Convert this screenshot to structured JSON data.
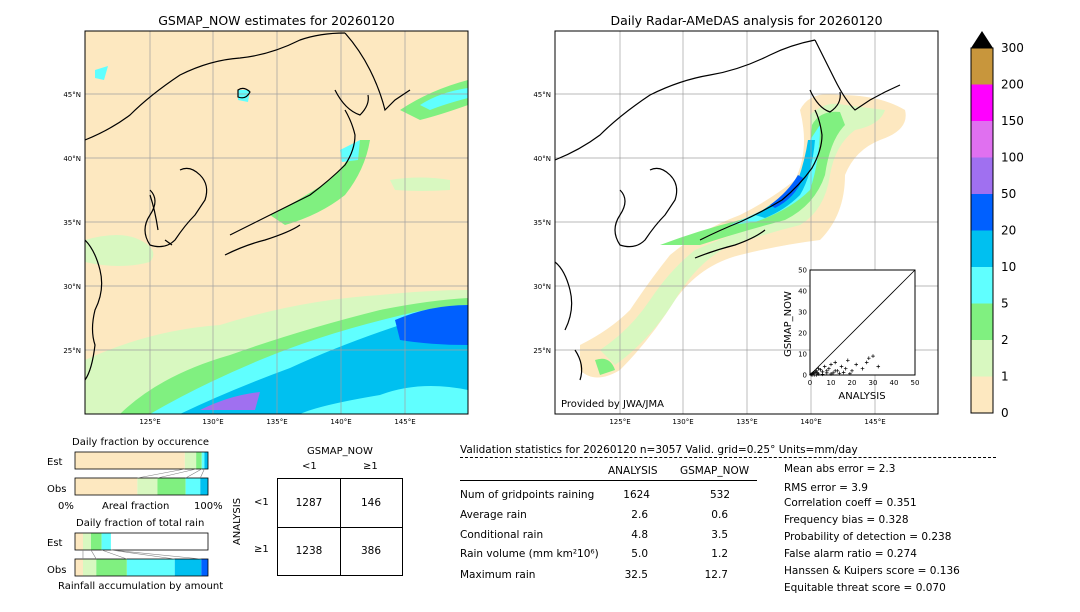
{
  "left_map": {
    "title": "GSMAP_NOW estimates for 20260120",
    "lon_ticks": [
      "125°E",
      "130°E",
      "135°E",
      "140°E",
      "145°E"
    ],
    "lat_ticks": [
      "45°N",
      "40°N",
      "35°N",
      "30°N",
      "25°N"
    ]
  },
  "right_map": {
    "title": "Daily Radar-AMeDAS analysis for 20260120",
    "lon_ticks": [
      "125°E",
      "130°E",
      "135°E",
      "140°E",
      "145°E"
    ],
    "lat_ticks": [
      "45°N",
      "40°N",
      "35°N",
      "30°N",
      "25°N"
    ],
    "credit": "Provided by JWA/JMA"
  },
  "colorbar": {
    "labels": [
      "300",
      "200",
      "150",
      "100",
      "50",
      "20",
      "10",
      "5",
      "2",
      "1",
      "0"
    ],
    "colors": [
      "#c8963c",
      "#ff00ff",
      "#e070f0",
      "#a070f0",
      "#0060ff",
      "#00c0f0",
      "#60ffff",
      "#80f080",
      "#d8f8c0",
      "#fde8c0"
    ]
  },
  "scatter": {
    "xlabel": "ANALYSIS",
    "ylabel": "GSMAP_NOW",
    "ticks": [
      "0",
      "10",
      "20",
      "30",
      "40",
      "50"
    ]
  },
  "occurrence": {
    "title": "Daily fraction by occurence",
    "row_est": "Est",
    "row_obs": "Obs",
    "axis_left": "0%",
    "axis_mid": "Areal fraction",
    "axis_right": "100%"
  },
  "total_rain": {
    "title": "Daily fraction of total rain",
    "row_est": "Est",
    "row_obs": "Obs",
    "footer": "Rainfall accumulation by amount"
  },
  "contingency": {
    "col_title": "GSMAP_NOW",
    "col_lt": "<1",
    "col_ge": "≥1",
    "row_title": "ANALYSIS",
    "row_lt": "<1",
    "row_ge": "≥1",
    "a": "1287",
    "b": "146",
    "c": "1238",
    "d": "386"
  },
  "validation": {
    "header": "Validation statistics for 20260120  n=3057 Valid. grid=0.25° Units=mm/day",
    "col_analysis": "ANALYSIS",
    "col_gsmap": "GSMAP_NOW",
    "rows": [
      {
        "label": "Num of gridpoints raining",
        "analysis": "1624",
        "gsmap": "532"
      },
      {
        "label": "Average rain",
        "analysis": "2.6",
        "gsmap": "0.6"
      },
      {
        "label": "Conditional rain",
        "analysis": "4.8",
        "gsmap": "3.5"
      },
      {
        "label": "Rain volume (mm km²10⁶)",
        "analysis": "5.0",
        "gsmap": "1.2"
      },
      {
        "label": "Maximum rain",
        "analysis": "32.5",
        "gsmap": "12.7"
      }
    ],
    "scores": [
      "Mean abs error =    2.3",
      "RMS error =    3.9",
      "Correlation coeff =  0.351",
      "Frequency bias =  0.328",
      "Probability of detection =  0.238",
      "False alarm ratio =  0.274",
      "Hanssen & Kuipers score =  0.136",
      "Equitable threat score =  0.070"
    ]
  },
  "chart_data": [
    {
      "type": "heatmap",
      "title": "GSMAP_NOW estimates for 20260120",
      "x_range": [
        120,
        150
      ],
      "y_range": [
        20,
        50
      ],
      "x_ticks": [
        125,
        130,
        135,
        140,
        145
      ],
      "y_ticks": [
        25,
        30,
        35,
        40,
        45
      ],
      "grid": true
    },
    {
      "type": "heatmap",
      "title": "Daily Radar-AMeDAS analysis for 20260120",
      "x_range": [
        120,
        150
      ],
      "y_range": [
        20,
        50
      ],
      "x_ticks": [
        125,
        130,
        135,
        140,
        145
      ],
      "y_ticks": [
        25,
        30,
        35,
        40,
        45
      ],
      "grid": true
    },
    {
      "type": "scatter",
      "xlabel": "ANALYSIS",
      "ylabel": "GSMAP_NOW",
      "xlim": [
        0,
        50
      ],
      "ylim": [
        0,
        50
      ],
      "x": [
        0.5,
        1,
        1.5,
        2,
        2.5,
        3,
        3.5,
        4,
        5,
        6,
        7,
        8,
        9,
        10,
        11,
        12,
        13,
        15,
        17,
        18,
        20,
        22,
        25,
        27,
        28,
        30,
        32.5,
        1,
        2,
        3,
        4,
        6,
        8,
        10,
        12,
        14,
        16,
        19
      ],
      "y": [
        0.2,
        0.5,
        1,
        0.8,
        1.5,
        2,
        1,
        3,
        2.5,
        1.5,
        4,
        2,
        3,
        5,
        1,
        6,
        2,
        4,
        3,
        7,
        2,
        5,
        3,
        6,
        8,
        9,
        4,
        0,
        0,
        0,
        0.5,
        0.3,
        1,
        0.5,
        2,
        0.8,
        1.2,
        0.6
      ]
    },
    {
      "type": "bar",
      "title": "Daily fraction by occurence",
      "categories": [
        "Est",
        "Obs"
      ],
      "series": [
        {
          "values": [
            0.826,
            0.469
          ]
        },
        {
          "values": [
            0.085,
            0.151
          ]
        },
        {
          "values": [
            0.042,
            0.212
          ]
        },
        {
          "values": [
            0.02,
            0.11
          ]
        },
        {
          "values": [
            0.027,
            0.058
          ]
        }
      ]
    },
    {
      "type": "bar",
      "title": "Daily fraction of total rain",
      "categories": [
        "Est",
        "Obs"
      ],
      "series": [
        {
          "values": [
            0.06,
            0.06
          ]
        },
        {
          "values": [
            0.06,
            0.1
          ]
        },
        {
          "values": [
            0.08,
            0.23
          ]
        },
        {
          "values": [
            0.07,
            0.36
          ]
        },
        {
          "values": [
            0.0,
            0.2
          ]
        },
        {
          "values": [
            0.0,
            0.05
          ]
        }
      ]
    }
  ]
}
